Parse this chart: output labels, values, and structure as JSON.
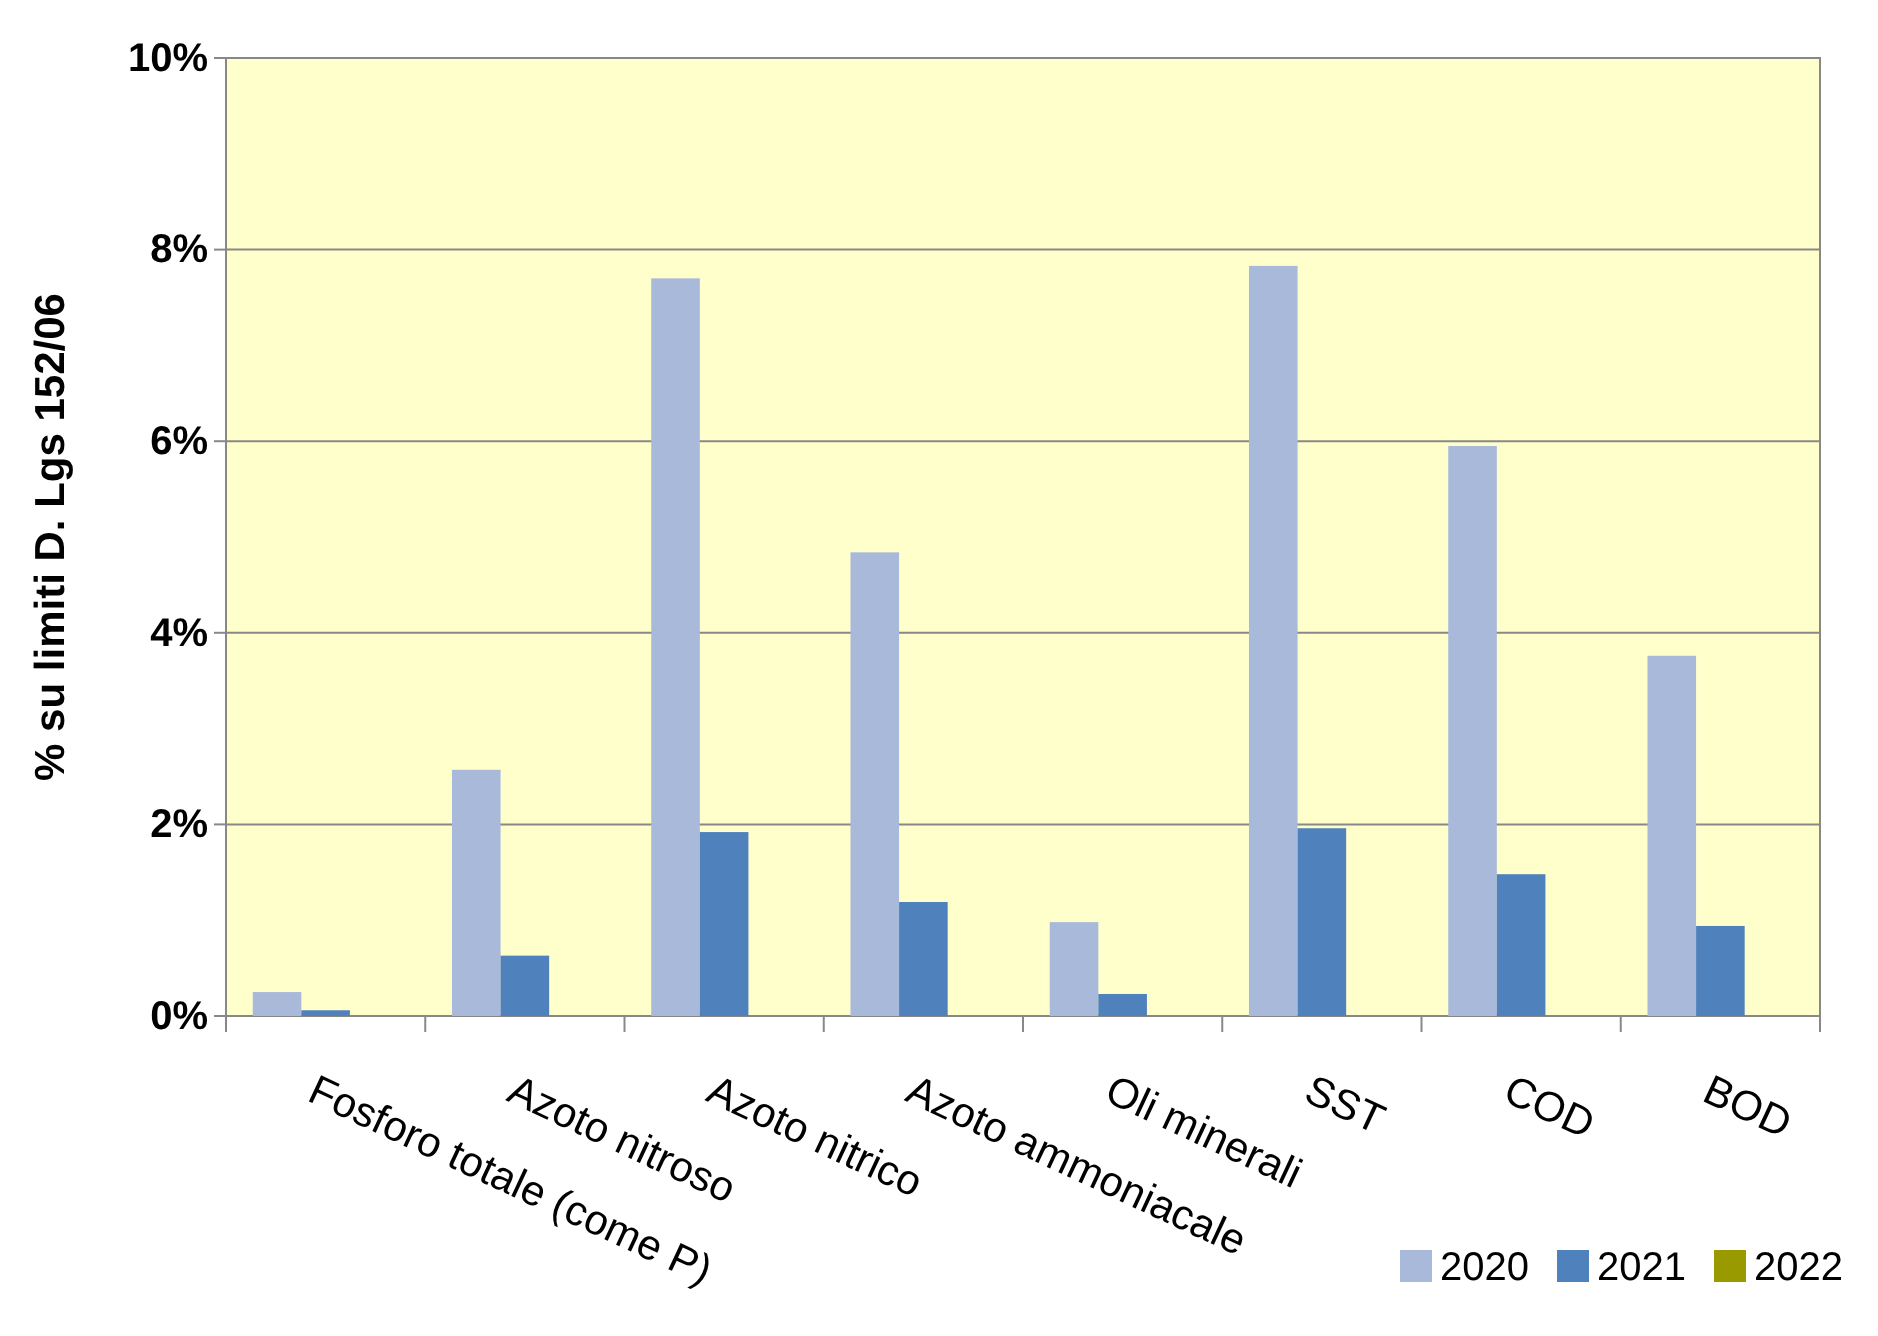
{
  "chart_data": {
    "type": "bar",
    "ylabel": "% su limiti D. Lgs 152/06",
    "categories": [
      "Fosforo totale (come P)",
      "Azoto nitroso",
      "Azoto nitrico",
      "Azoto ammoniacale",
      "Oli minerali",
      "SST",
      "COD",
      "BOD"
    ],
    "series": [
      {
        "name": "2020",
        "color": "#a9b9d9",
        "values": [
          0.25,
          2.57,
          7.7,
          4.84,
          0.98,
          7.83,
          5.95,
          3.76
        ]
      },
      {
        "name": "2021",
        "color": "#4f81bd",
        "values": [
          0.06,
          0.63,
          1.92,
          1.19,
          0.23,
          1.96,
          1.48,
          0.94
        ]
      },
      {
        "name": "2022",
        "color": "#999900",
        "values": [
          null,
          null,
          null,
          null,
          null,
          null,
          null,
          null
        ]
      }
    ],
    "ylim": [
      0,
      10
    ],
    "yticks": [
      {
        "value": 0,
        "label": "0%"
      },
      {
        "value": 2,
        "label": "2%"
      },
      {
        "value": 4,
        "label": "4%"
      },
      {
        "value": 6,
        "label": "6%"
      },
      {
        "value": 8,
        "label": "8%"
      },
      {
        "value": 10,
        "label": "10%"
      }
    ],
    "grid": "y",
    "legend": "bottom right"
  }
}
